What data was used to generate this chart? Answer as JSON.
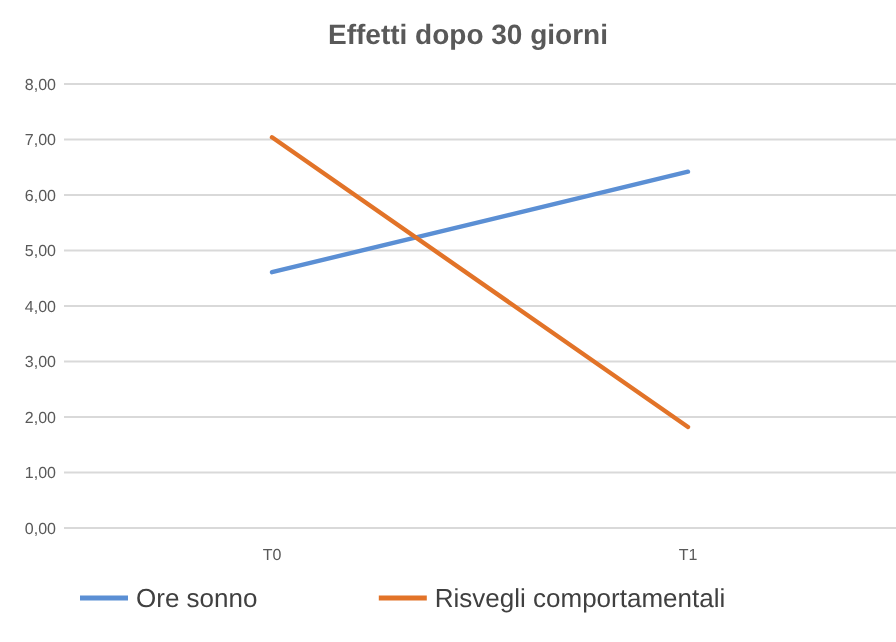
{
  "chart_data": {
    "type": "line",
    "title": "Effetti dopo 30 giorni",
    "categories": [
      "T0",
      "T1"
    ],
    "series": [
      {
        "name": "Ore sonno",
        "color": "#5b8fd4",
        "values": [
          4.61,
          6.42
        ]
      },
      {
        "name": "Risvegli comportamentali",
        "color": "#e27328",
        "values": [
          7.04,
          1.82
        ]
      }
    ],
    "ylim": [
      0,
      8
    ],
    "yticks": [
      {
        "value": 0,
        "label": "0,00"
      },
      {
        "value": 1,
        "label": "1,00"
      },
      {
        "value": 2,
        "label": "2,00"
      },
      {
        "value": 3,
        "label": "3,00"
      },
      {
        "value": 4,
        "label": "4,00"
      },
      {
        "value": 5,
        "label": "5,00"
      },
      {
        "value": 6,
        "label": "6,00"
      },
      {
        "value": 7,
        "label": "7,00"
      },
      {
        "value": 8,
        "label": "8,00"
      }
    ],
    "grid": "y",
    "legend": "bottom",
    "marker": "none",
    "line_style": "solid"
  }
}
